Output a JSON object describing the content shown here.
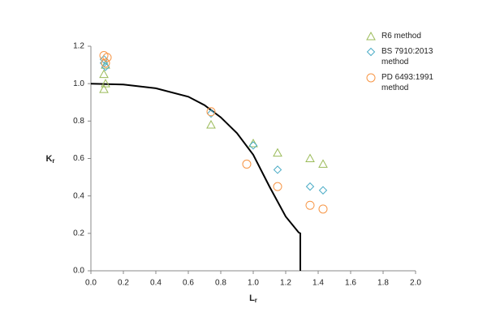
{
  "chart_data": {
    "type": "scatter",
    "x_label": {
      "main": "L",
      "sub": "r"
    },
    "y_label": {
      "main": "K",
      "sub": "r"
    },
    "xlim": [
      0,
      2
    ],
    "ylim": [
      0,
      1.2
    ],
    "xticks": [
      {
        "value": 0,
        "label": "0.0"
      },
      {
        "value": 0.2,
        "label": "0.2"
      },
      {
        "value": 0.4,
        "label": "0.4"
      },
      {
        "value": 0.6,
        "label": "0.6"
      },
      {
        "value": 0.8,
        "label": "0.8"
      },
      {
        "value": 1,
        "label": "1.0"
      },
      {
        "value": 1.2,
        "label": "1.2"
      },
      {
        "value": 1.4,
        "label": "1.4"
      },
      {
        "value": 1.6,
        "label": "1.6"
      },
      {
        "value": 1.8,
        "label": "1.8"
      },
      {
        "value": 2,
        "label": "2.0"
      }
    ],
    "yticks": [
      {
        "value": 0,
        "label": "0.0"
      },
      {
        "value": 0.2,
        "label": "0.2"
      },
      {
        "value": 0.4,
        "label": "0.4"
      },
      {
        "value": 0.6,
        "label": "0.6"
      },
      {
        "value": 0.8,
        "label": "0.8"
      },
      {
        "value": 1,
        "label": "1.0"
      },
      {
        "value": 1.2,
        "label": "1.2"
      }
    ],
    "grid": false,
    "legend": "right",
    "line": {
      "color": "#000000",
      "x": [
        0,
        0.2,
        0.4,
        0.6,
        0.7,
        0.8,
        0.9,
        1.0,
        1.1,
        1.2,
        1.28,
        1.29,
        1.29
      ],
      "y": [
        1.0,
        0.995,
        0.975,
        0.93,
        0.885,
        0.82,
        0.735,
        0.62,
        0.45,
        0.29,
        0.205,
        0.2,
        0
      ]
    },
    "series": [
      {
        "name": "R6 method",
        "color": "#9bbb59",
        "marker": "triangle",
        "x": [
          0.08,
          0.09,
          0.08,
          0.09,
          0.74,
          1.0,
          1.15,
          1.35,
          1.43
        ],
        "values": [
          0.97,
          1.0,
          1.05,
          1.1,
          0.78,
          0.68,
          0.63,
          0.6,
          0.57
        ]
      },
      {
        "name": "BS 7910:2013 method",
        "color": "#4bacc6",
        "marker": "diamond",
        "x": [
          0.08,
          0.09,
          0.08,
          0.74,
          1.0,
          1.15,
          1.35,
          1.43
        ],
        "values": [
          1.13,
          1.09,
          1.11,
          0.84,
          0.67,
          0.54,
          0.45,
          0.43
        ]
      },
      {
        "name": "PD 6493:1991 method",
        "color": "#f79646",
        "marker": "circle",
        "x": [
          0.08,
          0.1,
          0.09,
          0.74,
          0.96,
          1.15,
          1.35,
          1.43
        ],
        "values": [
          1.15,
          1.14,
          1.11,
          0.85,
          0.57,
          0.45,
          0.35,
          0.33
        ]
      }
    ]
  }
}
